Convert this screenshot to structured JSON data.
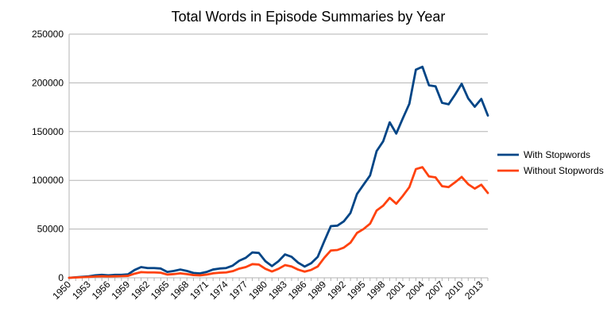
{
  "chart_data": {
    "type": "line",
    "title": "Total Words in Episode Summaries by Year",
    "xlabel": "",
    "ylabel": "",
    "ylim": [
      0,
      250000
    ],
    "y_ticks": [
      "0",
      "50000",
      "100000",
      "150000",
      "200000",
      "250000"
    ],
    "x_tick_labels": [
      "1950",
      "1953",
      "1956",
      "1959",
      "1962",
      "1965",
      "1968",
      "1971",
      "1974",
      "1977",
      "1980",
      "1983",
      "1986",
      "1989",
      "1992",
      "1995",
      "1998",
      "2001",
      "2004",
      "2007",
      "2010",
      "2013"
    ],
    "grid": true,
    "legend_position": "right",
    "x": [
      1950,
      1951,
      1952,
      1953,
      1954,
      1955,
      1956,
      1957,
      1958,
      1959,
      1960,
      1961,
      1962,
      1963,
      1964,
      1965,
      1966,
      1967,
      1968,
      1969,
      1970,
      1971,
      1972,
      1973,
      1974,
      1975,
      1976,
      1977,
      1978,
      1979,
      1980,
      1981,
      1982,
      1983,
      1984,
      1985,
      1986,
      1987,
      1988,
      1989,
      1990,
      1991,
      1992,
      1993,
      1994,
      1995,
      1996,
      1997,
      1998,
      1999,
      2000,
      2001,
      2002,
      2003,
      2004,
      2005,
      2006,
      2007,
      2008,
      2009,
      2010,
      2011,
      2012,
      2013,
      2014
    ],
    "series": [
      {
        "name": "With Stopwords",
        "color": "#004586",
        "values": [
          0,
          500,
          1000,
          1500,
          2500,
          3000,
          2500,
          3000,
          3000,
          3500,
          8000,
          11000,
          10000,
          10000,
          9500,
          6000,
          7000,
          8500,
          7000,
          5000,
          4500,
          6000,
          8500,
          9500,
          10000,
          12500,
          17500,
          20500,
          26000,
          25500,
          17000,
          12000,
          17000,
          24000,
          21500,
          15500,
          11500,
          15000,
          21500,
          37500,
          53000,
          53500,
          58000,
          66500,
          86000,
          95500,
          105000,
          130000,
          140000,
          159500,
          148000,
          163500,
          178500,
          213500,
          216500,
          197500,
          196500,
          179500,
          178000,
          188000,
          199000,
          184000,
          175500,
          183500,
          166500
        ]
      },
      {
        "name": "Without Stopwords",
        "color": "#ff420e",
        "values": [
          0,
          300,
          600,
          900,
          1300,
          1600,
          1400,
          1600,
          1700,
          2000,
          4200,
          5800,
          5500,
          5500,
          5200,
          3300,
          3800,
          4600,
          3800,
          2800,
          2500,
          3300,
          4600,
          5200,
          5500,
          6800,
          9400,
          11000,
          14000,
          13600,
          9200,
          6500,
          9200,
          13000,
          11600,
          8400,
          6300,
          8100,
          11600,
          20500,
          28000,
          28500,
          31000,
          36000,
          46000,
          50000,
          55500,
          69000,
          74000,
          82000,
          76000,
          84000,
          93000,
          111500,
          113500,
          104000,
          103000,
          94000,
          93000,
          98000,
          103500,
          96000,
          91500,
          95500,
          87000
        ]
      }
    ]
  }
}
